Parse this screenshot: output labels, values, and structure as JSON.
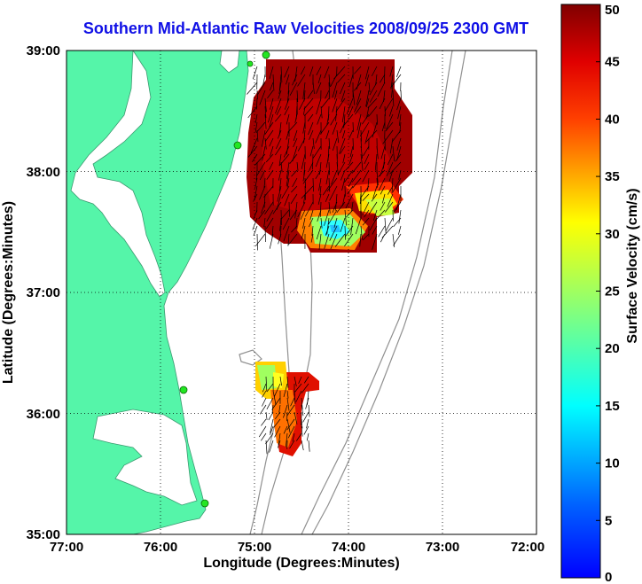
{
  "title": "Southern Mid-Atlantic Raw Velocities 2008/09/25 2300 GMT",
  "x_axis": {
    "label": "Longitude (Degrees:Minutes)",
    "ticks": [
      "77:00",
      "76:00",
      "75:00",
      "74:00",
      "73:00",
      "72:00"
    ],
    "range": [
      -77,
      -72
    ]
  },
  "y_axis": {
    "label": "Latitude (Degrees:Minutes)",
    "ticks": [
      "35:00",
      "36:00",
      "37:00",
      "38:00",
      "39:00"
    ],
    "range": [
      35,
      39
    ]
  },
  "colorbar": {
    "label": "Surface Velocity (cm/s)",
    "ticks": [
      "0",
      "5",
      "10",
      "15",
      "20",
      "25",
      "30",
      "35",
      "40",
      "45",
      "50"
    ],
    "range": [
      0,
      50
    ],
    "colormap": "jet"
  },
  "grid": "dotted",
  "colors": {
    "land": "#55f5a9",
    "water": "#ffffff",
    "title": "#1010e6",
    "isobath": "#909090",
    "site_marker": "#22e622",
    "vectors": "#000000"
  },
  "map": {
    "velocity_field": "surface current vectors over colored velocity magnitude",
    "radar_sites": 5
  }
}
